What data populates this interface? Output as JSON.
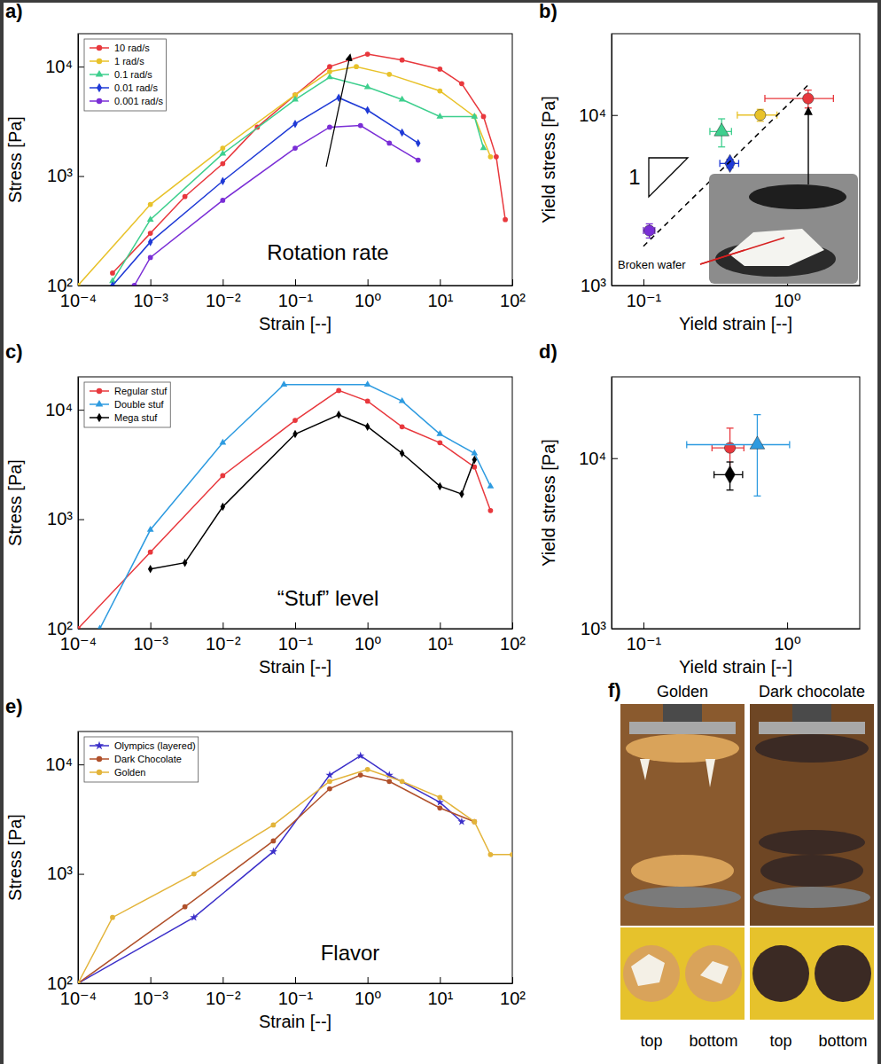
{
  "chart_data": [
    {
      "type": "line",
      "title": "a)",
      "x_label": "Strain [--]",
      "y_label": "Stress [Pa]",
      "log": true,
      "xlim": [
        0.0001,
        100
      ],
      "ylim": [
        100,
        20000
      ],
      "xticks": [
        {
          "value": 0.0001,
          "label": "10⁻⁴"
        },
        {
          "value": 0.001,
          "label": "10⁻³"
        },
        {
          "value": 0.01,
          "label": "10⁻²"
        },
        {
          "value": 0.1,
          "label": "10⁻¹"
        },
        {
          "value": 1,
          "label": "10⁰"
        },
        {
          "value": 10,
          "label": "10¹"
        },
        {
          "value": 100,
          "label": "10²"
        }
      ],
      "yticks": [
        {
          "value": 100,
          "label": "10²"
        },
        {
          "value": 1000,
          "label": "10³"
        },
        {
          "value": 10000,
          "label": "10⁴"
        }
      ],
      "legend": "upper left",
      "annotations": [
        "Rotation rate"
      ],
      "series": [
        {
          "name": "10 rad/s",
          "color": "#e8383d",
          "marker": "circle",
          "x": [
            0.0003,
            0.001,
            0.003,
            0.01,
            0.03,
            0.1,
            0.3,
            1,
            3,
            10,
            20,
            40,
            60,
            80
          ],
          "values": [
            130,
            300,
            650,
            1300,
            2800,
            5500,
            10000,
            13000,
            11500,
            9500,
            7000,
            3500,
            1500,
            400
          ]
        },
        {
          "name": "1 rad/s",
          "color": "#e8c22a",
          "marker": "circle",
          "x": [
            0.0001,
            0.001,
            0.01,
            0.1,
            0.3,
            0.7,
            2,
            10,
            30,
            50
          ],
          "values": [
            100,
            550,
            1800,
            5500,
            9000,
            10000,
            8500,
            6000,
            3500,
            1500
          ]
        },
        {
          "name": "0.1 rad/s",
          "color": "#3ecf8e",
          "marker": "triangle",
          "x": [
            0.0003,
            0.001,
            0.01,
            0.1,
            0.3,
            1,
            3,
            10,
            30,
            40
          ],
          "values": [
            110,
            400,
            1600,
            5000,
            8000,
            6500,
            5000,
            3500,
            3500,
            1800
          ]
        },
        {
          "name": "0.01 rad/s",
          "color": "#1f3ad6",
          "marker": "diamond",
          "x": [
            0.0003,
            0.001,
            0.01,
            0.1,
            0.4,
            1,
            3,
            5
          ],
          "values": [
            100,
            250,
            900,
            3000,
            5200,
            4000,
            2500,
            2000
          ]
        },
        {
          "name": "0.001 rad/s",
          "color": "#7a2ed6",
          "marker": "circle",
          "x": [
            0.0006,
            0.001,
            0.01,
            0.1,
            0.3,
            0.8,
            2,
            5
          ],
          "values": [
            100,
            180,
            600,
            1800,
            2800,
            2900,
            2000,
            1400
          ]
        }
      ]
    },
    {
      "type": "scatter",
      "title": "b)",
      "x_label": "Yield strain [--]",
      "y_label": "Yield stress [Pa]",
      "log": true,
      "xlim": [
        0.06,
        3.2
      ],
      "ylim": [
        1000,
        30000
      ],
      "xticks": [
        {
          "value": 0.1,
          "label": "10⁻¹"
        },
        {
          "value": 1,
          "label": "10⁰"
        }
      ],
      "yticks": [
        {
          "value": 1000,
          "label": "10³"
        },
        {
          "value": 10000,
          "label": "10⁴"
        }
      ],
      "annotations": [
        "1",
        "Broken wafer"
      ],
      "series": [
        {
          "color": "#7a2ed6",
          "marker": "circle",
          "x": [
            0.11
          ],
          "values": [
            2100
          ],
          "x_error": [
            0.01
          ],
          "y_error": [
            200
          ]
        },
        {
          "color": "#1f3ad6",
          "marker": "diamond",
          "x": [
            0.4
          ],
          "values": [
            5200
          ],
          "x_error": [
            0.06
          ],
          "y_error": [
            300
          ]
        },
        {
          "color": "#3ecf8e",
          "marker": "triangle",
          "x": [
            0.35
          ],
          "values": [
            8000
          ],
          "x_error": [
            0.06
          ],
          "y_error": [
            1500
          ]
        },
        {
          "color": "#e8c22a",
          "marker": "circle",
          "x": [
            0.65
          ],
          "values": [
            10000
          ],
          "x_error": [
            0.2
          ],
          "y_error": [
            800
          ]
        },
        {
          "color": "#e8383d",
          "marker": "circle",
          "x": [
            1.4
          ],
          "values": [
            12500
          ],
          "x_error": [
            0.7
          ],
          "y_error": [
            1500
          ]
        },
        {
          "type": "line",
          "color": "#000000",
          "line_style": "dashed",
          "x": [
            0.1,
            1.4
          ],
          "values": [
            1700,
            15000
          ]
        }
      ]
    },
    {
      "type": "line",
      "title": "c)",
      "x_label": "Strain [--]",
      "y_label": "Stress [Pa]",
      "log": true,
      "xlim": [
        0.0001,
        100
      ],
      "ylim": [
        100,
        20000
      ],
      "xticks": [
        {
          "value": 0.0001,
          "label": "10⁻⁴"
        },
        {
          "value": 0.001,
          "label": "10⁻³"
        },
        {
          "value": 0.01,
          "label": "10⁻²"
        },
        {
          "value": 0.1,
          "label": "10⁻¹"
        },
        {
          "value": 1,
          "label": "10⁰"
        },
        {
          "value": 10,
          "label": "10¹"
        },
        {
          "value": 100,
          "label": "10²"
        }
      ],
      "yticks": [
        {
          "value": 100,
          "label": "10²"
        },
        {
          "value": 1000,
          "label": "10³"
        },
        {
          "value": 10000,
          "label": "10⁴"
        }
      ],
      "legend": "upper left",
      "annotations": [
        "“Stuf” level"
      ],
      "series": [
        {
          "name": "Regular stuf",
          "color": "#e8383d",
          "marker": "circle",
          "x": [
            0.0001,
            0.001,
            0.01,
            0.1,
            0.4,
            1,
            3,
            10,
            30,
            50
          ],
          "values": [
            100,
            500,
            2500,
            8000,
            15000,
            12000,
            7000,
            5000,
            3000,
            1200
          ]
        },
        {
          "name": "Double stuf",
          "color": "#2e9be0",
          "marker": "triangle",
          "x": [
            0.0002,
            0.001,
            0.01,
            0.07,
            1,
            3,
            10,
            30,
            50
          ],
          "values": [
            100,
            800,
            5000,
            17000,
            17000,
            12000,
            6000,
            4000,
            2000
          ]
        },
        {
          "name": "Mega stuf",
          "color": "#000000",
          "marker": "diamond",
          "x": [
            0.001,
            0.003,
            0.01,
            0.1,
            0.4,
            1,
            3,
            10,
            20,
            30
          ],
          "values": [
            350,
            400,
            1300,
            6000,
            9000,
            7000,
            4000,
            2000,
            1700,
            3500
          ]
        }
      ]
    },
    {
      "type": "scatter",
      "title": "d)",
      "x_label": "Yield strain [--]",
      "y_label": "Yield stress [Pa]",
      "log": true,
      "xlim": [
        0.06,
        3.2
      ],
      "ylim": [
        1000,
        30000
      ],
      "xticks": [
        {
          "value": 0.1,
          "label": "10⁻¹"
        },
        {
          "value": 1,
          "label": "10⁰"
        }
      ],
      "yticks": [
        {
          "value": 1000,
          "label": "10³"
        },
        {
          "value": 10000,
          "label": "10⁴"
        }
      ],
      "series": [
        {
          "color": "#e8383d",
          "marker": "circle",
          "x": [
            0.4
          ],
          "values": [
            11500
          ],
          "x_error": [
            0.1
          ],
          "y_error": [
            3500
          ]
        },
        {
          "color": "#2e9be0",
          "marker": "triangle",
          "x": [
            0.62
          ],
          "values": [
            12000
          ],
          "x_error": [
            0.42
          ],
          "y_error": [
            6000
          ]
        },
        {
          "color": "#000000",
          "marker": "diamond",
          "x": [
            0.4
          ],
          "values": [
            8000
          ],
          "x_error": [
            0.09
          ],
          "y_error": [
            1500
          ]
        }
      ]
    },
    {
      "type": "line",
      "title": "e)",
      "x_label": "Strain [--]",
      "y_label": "Stress [Pa]",
      "log": true,
      "xlim": [
        0.0001,
        100
      ],
      "ylim": [
        100,
        20000
      ],
      "xticks": [
        {
          "value": 0.0001,
          "label": "10⁻⁴"
        },
        {
          "value": 0.001,
          "label": "10⁻³"
        },
        {
          "value": 0.01,
          "label": "10⁻²"
        },
        {
          "value": 0.1,
          "label": "10⁻¹"
        },
        {
          "value": 1,
          "label": "10⁰"
        },
        {
          "value": 10,
          "label": "10¹"
        },
        {
          "value": 100,
          "label": "10²"
        }
      ],
      "yticks": [
        {
          "value": 100,
          "label": "10²"
        },
        {
          "value": 1000,
          "label": "10³"
        },
        {
          "value": 10000,
          "label": "10⁴"
        }
      ],
      "legend": "upper left",
      "annotations": [
        "Flavor"
      ],
      "series": [
        {
          "name": "Olympics (layered)",
          "color": "#3b2fc9",
          "marker": "star",
          "x": [
            0.0001,
            0.004,
            0.05,
            0.3,
            0.8,
            2,
            10,
            20
          ],
          "values": [
            100,
            400,
            1600,
            8000,
            12000,
            8000,
            4500,
            3000
          ]
        },
        {
          "name": "Dark Chocolate",
          "color": "#b0502a",
          "marker": "circle",
          "x": [
            0.0001,
            0.003,
            0.05,
            0.3,
            0.8,
            2,
            10,
            30
          ],
          "values": [
            100,
            500,
            2000,
            6000,
            8000,
            7000,
            4000,
            3000
          ]
        },
        {
          "name": "Golden",
          "color": "#e3b43a",
          "marker": "circle",
          "x": [
            0.0001,
            0.0003,
            0.004,
            0.05,
            0.3,
            1,
            3,
            10,
            30,
            50,
            100
          ],
          "values": [
            100,
            400,
            1000,
            2800,
            7000,
            9000,
            7000,
            5000,
            3000,
            1500,
            1500
          ]
        }
      ]
    }
  ],
  "photos": {
    "title": "f)",
    "columns": [
      {
        "title": "Golden",
        "captions": [
          "top",
          "bottom"
        ]
      },
      {
        "title": "Dark chocolate",
        "captions": [
          "top",
          "bottom"
        ]
      }
    ]
  }
}
